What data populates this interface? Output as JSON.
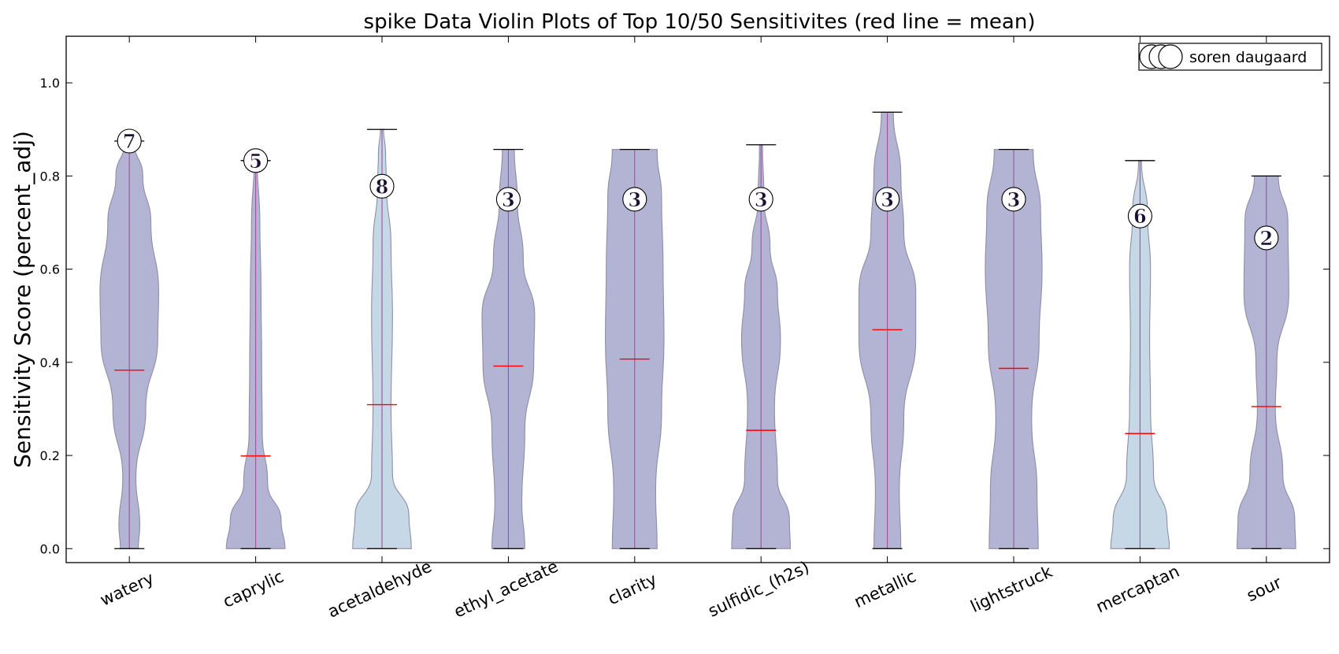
{
  "chart_data": {
    "type": "violin",
    "title": "spike Data Violin Plots of Top 10/50 Sensitivites (red line = mean)",
    "xlabel": "",
    "ylabel": "Sensitivity Score (percent_adj)",
    "ylim": [
      -0.03,
      1.1
    ],
    "yticks": [
      "0.0",
      "0.2",
      "0.4",
      "0.6",
      "0.8",
      "1.0"
    ],
    "grid": false,
    "legend": {
      "position": "top-right",
      "label": "soren daugaard"
    },
    "colors": {
      "dark_violin": "#b3b3d3",
      "light_violin": "#c6d7e6",
      "violin_edge": "#8e8ea8",
      "median_line": "#a050a0",
      "mean_line": "#ff0000"
    },
    "categories": [
      "watery",
      "caprylic",
      "acetaldehyde",
      "ethyl_acetate",
      "clarity",
      "sulfidic_(h2s)",
      "metallic",
      "lightstruck",
      "mercaptan",
      "sour"
    ],
    "series": [
      {
        "category": "watery",
        "min": 0.0,
        "max": 0.875,
        "mean": 0.383,
        "count": "7",
        "count_y": 0.875,
        "light": false,
        "density": [
          [
            0.0,
            0.3
          ],
          [
            0.05,
            0.35
          ],
          [
            0.15,
            0.22
          ],
          [
            0.3,
            0.55
          ],
          [
            0.45,
            0.95
          ],
          [
            0.55,
            0.98
          ],
          [
            0.7,
            0.72
          ],
          [
            0.8,
            0.45
          ],
          [
            0.875,
            0.15
          ]
        ]
      },
      {
        "category": "caprylic",
        "min": 0.0,
        "max": 0.833,
        "mean": 0.199,
        "count": "5",
        "count_y": 0.833,
        "light": false,
        "density": [
          [
            0.0,
            0.98
          ],
          [
            0.06,
            0.85
          ],
          [
            0.14,
            0.4
          ],
          [
            0.25,
            0.22
          ],
          [
            0.4,
            0.2
          ],
          [
            0.55,
            0.18
          ],
          [
            0.7,
            0.14
          ],
          [
            0.833,
            0.05
          ]
        ]
      },
      {
        "category": "acetaldehyde",
        "min": 0.0,
        "max": 0.9,
        "mean": 0.309,
        "count": "8",
        "count_y": 0.778,
        "light": true,
        "density": [
          [
            0.0,
            0.98
          ],
          [
            0.07,
            0.9
          ],
          [
            0.16,
            0.35
          ],
          [
            0.3,
            0.3
          ],
          [
            0.5,
            0.35
          ],
          [
            0.65,
            0.3
          ],
          [
            0.78,
            0.15
          ],
          [
            0.85,
            0.12
          ],
          [
            0.9,
            0.05
          ]
        ]
      },
      {
        "category": "ethyl_acetate",
        "min": 0.0,
        "max": 0.857,
        "mean": 0.392,
        "count": "3",
        "count_y": 0.75,
        "light": false,
        "density": [
          [
            0.0,
            0.55
          ],
          [
            0.1,
            0.45
          ],
          [
            0.25,
            0.55
          ],
          [
            0.4,
            0.85
          ],
          [
            0.5,
            0.88
          ],
          [
            0.62,
            0.5
          ],
          [
            0.75,
            0.3
          ],
          [
            0.857,
            0.2
          ]
        ]
      },
      {
        "category": "clarity",
        "min": 0.0,
        "max": 0.857,
        "mean": 0.407,
        "count": "3",
        "count_y": 0.75,
        "light": false,
        "density": [
          [
            0.0,
            0.75
          ],
          [
            0.12,
            0.7
          ],
          [
            0.3,
            0.9
          ],
          [
            0.45,
            0.98
          ],
          [
            0.6,
            0.95
          ],
          [
            0.75,
            0.9
          ],
          [
            0.857,
            0.75
          ]
        ]
      },
      {
        "category": "sulfidic_(h2s)",
        "min": 0.0,
        "max": 0.867,
        "mean": 0.254,
        "count": "3",
        "count_y": 0.75,
        "light": false,
        "density": [
          [
            0.0,
            0.98
          ],
          [
            0.06,
            0.95
          ],
          [
            0.15,
            0.55
          ],
          [
            0.3,
            0.45
          ],
          [
            0.45,
            0.65
          ],
          [
            0.55,
            0.55
          ],
          [
            0.65,
            0.3
          ],
          [
            0.75,
            0.1
          ],
          [
            0.867,
            0.05
          ]
        ]
      },
      {
        "category": "metallic",
        "min": 0.0,
        "max": 0.937,
        "mean": 0.47,
        "count": "3",
        "count_y": 0.75,
        "light": false,
        "density": [
          [
            0.0,
            0.45
          ],
          [
            0.12,
            0.4
          ],
          [
            0.28,
            0.55
          ],
          [
            0.45,
            0.95
          ],
          [
            0.55,
            0.95
          ],
          [
            0.68,
            0.55
          ],
          [
            0.8,
            0.45
          ],
          [
            0.937,
            0.2
          ]
        ]
      },
      {
        "category": "lightstruck",
        "min": 0.0,
        "max": 0.857,
        "mean": 0.387,
        "count": "3",
        "count_y": 0.75,
        "light": false,
        "density": [
          [
            0.0,
            0.82
          ],
          [
            0.12,
            0.78
          ],
          [
            0.28,
            0.6
          ],
          [
            0.45,
            0.85
          ],
          [
            0.6,
            0.95
          ],
          [
            0.72,
            0.9
          ],
          [
            0.857,
            0.65
          ]
        ]
      },
      {
        "category": "mercaptan",
        "min": 0.0,
        "max": 0.833,
        "mean": 0.247,
        "count": "6",
        "count_y": 0.714,
        "light": true,
        "density": [
          [
            0.0,
            0.98
          ],
          [
            0.06,
            0.9
          ],
          [
            0.16,
            0.45
          ],
          [
            0.3,
            0.35
          ],
          [
            0.45,
            0.32
          ],
          [
            0.6,
            0.35
          ],
          [
            0.72,
            0.25
          ],
          [
            0.833,
            0.05
          ]
        ]
      },
      {
        "category": "sour",
        "min": 0.0,
        "max": 0.8,
        "mean": 0.305,
        "count": "2",
        "count_y": 0.667,
        "light": false,
        "density": [
          [
            0.0,
            0.98
          ],
          [
            0.06,
            0.95
          ],
          [
            0.16,
            0.55
          ],
          [
            0.3,
            0.3
          ],
          [
            0.4,
            0.35
          ],
          [
            0.55,
            0.75
          ],
          [
            0.7,
            0.72
          ],
          [
            0.8,
            0.4
          ]
        ]
      }
    ]
  }
}
